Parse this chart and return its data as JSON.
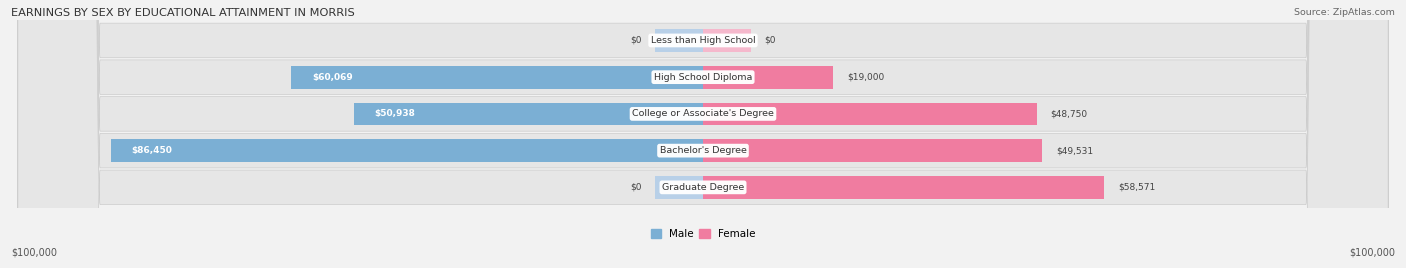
{
  "title": "EARNINGS BY SEX BY EDUCATIONAL ATTAINMENT IN MORRIS",
  "source": "Source: ZipAtlas.com",
  "categories": [
    "Less than High School",
    "High School Diploma",
    "College or Associate's Degree",
    "Bachelor's Degree",
    "Graduate Degree"
  ],
  "male_values": [
    0,
    60069,
    50938,
    86450,
    0
  ],
  "female_values": [
    0,
    19000,
    48750,
    49531,
    58571
  ],
  "male_labels": [
    "$0",
    "$60,069",
    "$50,938",
    "$86,450",
    "$0"
  ],
  "female_labels": [
    "$0",
    "$19,000",
    "$48,750",
    "$49,531",
    "$58,571"
  ],
  "male_color": "#7bafd4",
  "male_color_light": "#b8d0e8",
  "female_color": "#f07ca0",
  "female_color_light": "#f5b8cc",
  "row_bg_color": "#e8e8e8",
  "row_bg_light": "#f0f0f0",
  "max_value": 100000,
  "zero_stub": 7000,
  "x_tick_left": "$100,000",
  "x_tick_right": "$100,000"
}
